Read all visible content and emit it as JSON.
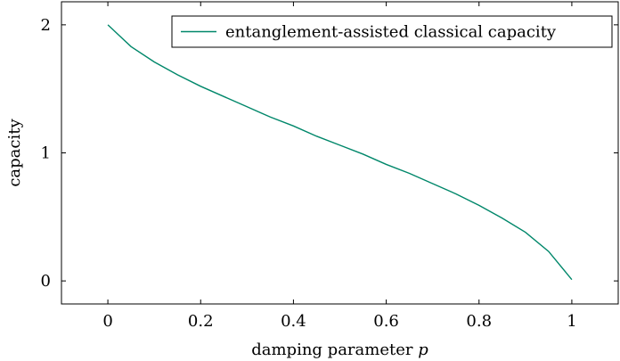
{
  "chart_data": {
    "type": "line",
    "xlabel": "damping parameter",
    "xlabel_var": "p",
    "ylabel": "capacity",
    "xlim": [
      -0.1,
      1.1
    ],
    "ylim": [
      -0.18,
      2.18
    ],
    "x_ticks": [
      0,
      0.2,
      0.4,
      0.6,
      0.8,
      1
    ],
    "x_tick_labels": [
      "0",
      "0.2",
      "0.4",
      "0.6",
      "0.8",
      "1"
    ],
    "y_ticks": [
      0,
      1,
      2
    ],
    "y_tick_labels": [
      "0",
      "1",
      "2"
    ],
    "grid": false,
    "legend_position": "top-right",
    "series": [
      {
        "name": "entanglement-assisted classical capacity",
        "color": "#00876a",
        "x": [
          0,
          0.05,
          0.1,
          0.15,
          0.2,
          0.25,
          0.3,
          0.35,
          0.4,
          0.45,
          0.5,
          0.55,
          0.6,
          0.65,
          0.7,
          0.75,
          0.8,
          0.85,
          0.9,
          0.95,
          1
        ],
        "y": [
          2,
          1.83,
          1.71,
          1.61,
          1.52,
          1.44,
          1.36,
          1.28,
          1.21,
          1.13,
          1.06,
          0.99,
          0.91,
          0.84,
          0.76,
          0.68,
          0.59,
          0.49,
          0.38,
          0.23,
          0.01
        ]
      }
    ]
  }
}
